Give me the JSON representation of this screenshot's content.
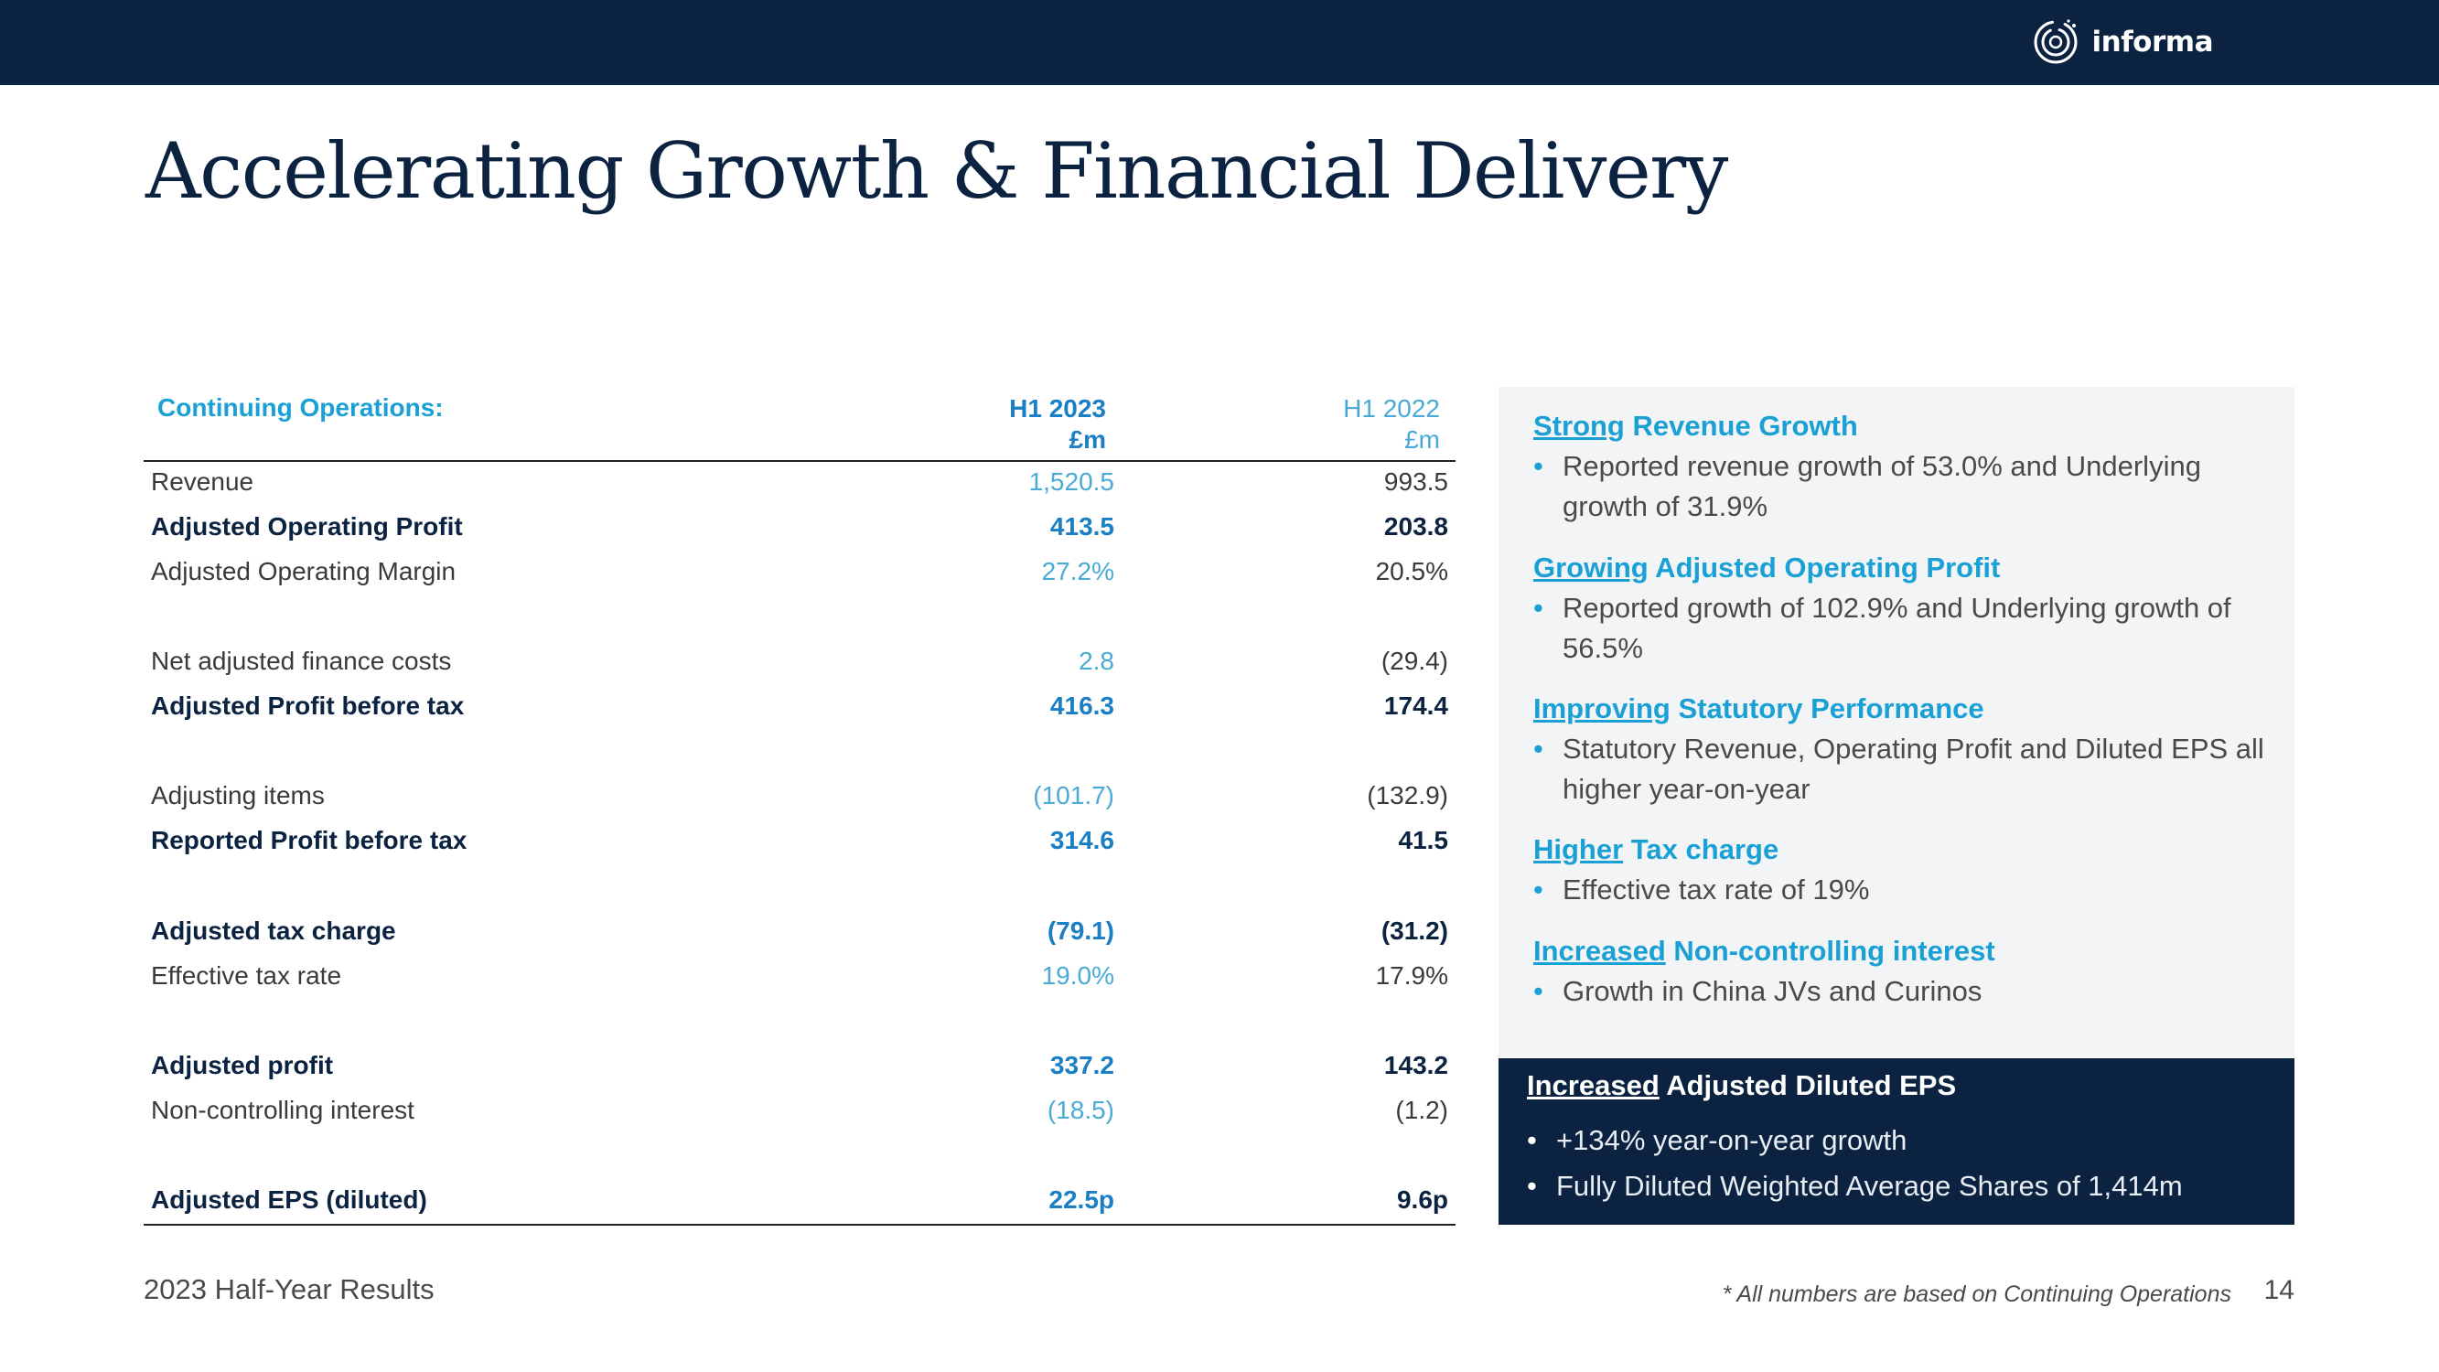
{
  "header": {
    "logo_text": "informa"
  },
  "title": "Accelerating Growth & Financial Delivery",
  "table": {
    "label": "Continuing Operations:",
    "col1": {
      "period": "H1 2023",
      "unit": "£m"
    },
    "col2": {
      "period": "H1 2022",
      "unit": "£m"
    },
    "rows": [
      {
        "label": "Revenue",
        "h1_2023": "1,520.5",
        "h1_2022": "993.5",
        "bold": false
      },
      {
        "label": "Adjusted Operating Profit",
        "h1_2023": "413.5",
        "h1_2022": "203.8",
        "bold": true
      },
      {
        "label": "Adjusted Operating Margin",
        "h1_2023": "27.2%",
        "h1_2022": "20.5%",
        "bold": false
      },
      {
        "label": "Net adjusted finance costs",
        "h1_2023": "2.8",
        "h1_2022": "(29.4)",
        "bold": false
      },
      {
        "label": "Adjusted Profit before tax",
        "h1_2023": "416.3",
        "h1_2022": "174.4",
        "bold": true
      },
      {
        "label": "Adjusting items",
        "h1_2023": "(101.7)",
        "h1_2022": "(132.9)",
        "bold": false
      },
      {
        "label": "Reported Profit before tax",
        "h1_2023": "314.6",
        "h1_2022": "41.5",
        "bold": true
      },
      {
        "label": "Adjusted tax charge",
        "h1_2023": "(79.1)",
        "h1_2022": "(31.2)",
        "bold": true
      },
      {
        "label": "Effective tax rate",
        "h1_2023": "19.0%",
        "h1_2022": "17.9%",
        "bold": false
      },
      {
        "label": "Adjusted profit",
        "h1_2023": "337.2",
        "h1_2022": "143.2",
        "bold": true
      },
      {
        "label": "Non-controlling interest",
        "h1_2023": "(18.5)",
        "h1_2022": "(1.2)",
        "bold": false
      },
      {
        "label": "Adjusted EPS (diluted)",
        "h1_2023": "22.5p",
        "h1_2022": "9.6p",
        "bold": true
      }
    ]
  },
  "highlights": [
    {
      "underlined": "Strong",
      "rest": " Revenue Growth",
      "bullet": "Reported revenue growth of 53.0% and Underlying growth of 31.9%"
    },
    {
      "underlined": "Growing",
      "rest": " Adjusted Operating Profit",
      "bullet": "Reported growth of 102.9% and Underlying growth of 56.5%"
    },
    {
      "underlined": "Improving",
      "rest": " Statutory Performance",
      "bullet": "Statutory Revenue, Operating Profit and Diluted EPS all higher year-on-year"
    },
    {
      "underlined": "Higher",
      "rest": " Tax charge",
      "bullet": "Effective tax rate of 19%"
    },
    {
      "underlined": "Increased",
      "rest": " Non-controlling interest",
      "bullet": "Growth in China JVs and Curinos"
    }
  ],
  "eps_box": {
    "underlined": "Increased",
    "rest": " Adjusted Diluted EPS",
    "bullets": [
      "+134% year-on-year growth",
      "Fully Diluted Weighted Average Shares of 1,414m"
    ]
  },
  "footer": {
    "left": "2023 Half-Year Results",
    "note": "* All numbers are based on Continuing Operations",
    "page": "14"
  },
  "colors": {
    "navy": "#0b2341",
    "accent_blue": "#1aa0d4",
    "panel_grey": "#f3f4f6"
  }
}
